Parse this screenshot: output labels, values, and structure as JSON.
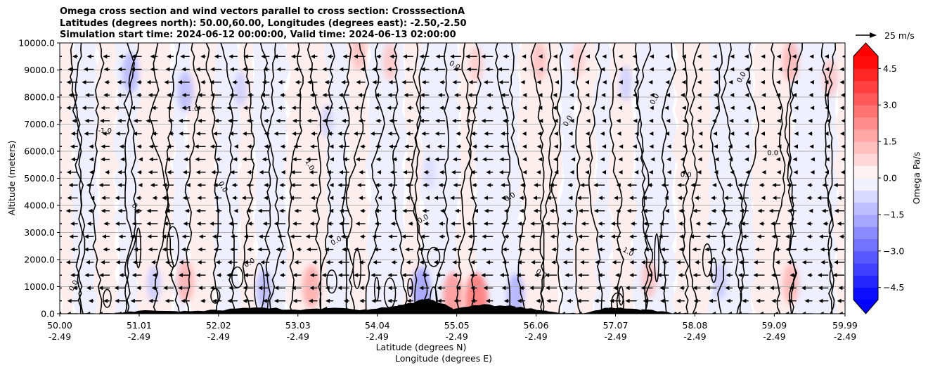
{
  "title": {
    "line1": "Omega cross section and wind vectors parallel to cross section: CrosssectionA",
    "line2": "Latitudes (degrees north): 50.00,60.00, Longitudes (degrees east): -2.50,-2.50",
    "line3": "Simulation start time: 2024-06-12 00:00:00, Valid time: 2024-06-13 02:00:00"
  },
  "chart_data": {
    "type": "heatmap",
    "description_kind": "cross-section contour plot with wind vectors",
    "ylabel": "Altitude (meters)",
    "xlabel_line1": "Latitude (degrees N)",
    "xlabel_line2": "Longitude (degrees E)",
    "ylim": [
      0,
      10000
    ],
    "y_ticks": [
      "0.0",
      "1000.0",
      "2000.0",
      "3000.0",
      "4000.0",
      "5000.0",
      "6000.0",
      "7000.0",
      "8000.0",
      "9000.0",
      "10000.0"
    ],
    "y_tick_values": [
      0,
      1000,
      2000,
      3000,
      4000,
      5000,
      6000,
      7000,
      8000,
      9000,
      10000
    ],
    "xlim": [
      50.0,
      59.99
    ],
    "x_ticks": [
      {
        "lat": "50.00",
        "lon": "-2.49",
        "value": 50.0
      },
      {
        "lat": "51.01",
        "lon": "-2.49",
        "value": 51.01
      },
      {
        "lat": "52.02",
        "lon": "-2.49",
        "value": 52.02
      },
      {
        "lat": "53.03",
        "lon": "-2.49",
        "value": 53.03
      },
      {
        "lat": "54.04",
        "lon": "-2.49",
        "value": 54.04
      },
      {
        "lat": "55.05",
        "lon": "-2.49",
        "value": 55.05
      },
      {
        "lat": "56.06",
        "lon": "-2.49",
        "value": 56.06
      },
      {
        "lat": "57.07",
        "lon": "-2.49",
        "value": 57.07
      },
      {
        "lat": "58.08",
        "lon": "-2.49",
        "value": 58.08
      },
      {
        "lat": "59.09",
        "lon": "-2.49",
        "value": 59.09
      },
      {
        "lat": "59.99",
        "lon": "-2.49",
        "value": 59.99
      }
    ],
    "grid": "horizontal",
    "colorbar": {
      "label": "Omega Pa/s",
      "range": [
        -5,
        5
      ],
      "ticks": [
        "4.5",
        "3.0",
        "1.5",
        "0.0",
        "−1.5",
        "−3.0",
        "−4.5"
      ],
      "tick_values": [
        4.5,
        3.0,
        1.5,
        0.0,
        -1.5,
        -3.0,
        -4.5
      ],
      "levels": 20,
      "colormap": "bwr"
    },
    "quiver_key": {
      "label": "25 m/s",
      "value": 25
    },
    "wind_direction": "westward (towards lower latitude)",
    "contour_labels": [
      "0.0",
      "0.0",
      "-1.0",
      "1.0",
      "1.0",
      "0.0",
      "0.0",
      "-1.0",
      "0.0",
      "0.0",
      "0.0",
      "0.0",
      "0.0",
      "0.0",
      "0.0",
      "0.0",
      "0.0",
      "0.0"
    ],
    "omega_anomalies": [
      {
        "lat": 50.9,
        "alt": 8900,
        "omega": -1.4
      },
      {
        "lat": 51.6,
        "alt": 8200,
        "omega": -1.3
      },
      {
        "lat": 52.3,
        "alt": 8300,
        "omega": -0.9
      },
      {
        "lat": 53.4,
        "alt": 7100,
        "omega": -0.8
      },
      {
        "lat": 53.8,
        "alt": 9700,
        "omega": 1.2
      },
      {
        "lat": 54.2,
        "alt": 9300,
        "omega": 1.1
      },
      {
        "lat": 54.7,
        "alt": 5200,
        "omega": -0.7
      },
      {
        "lat": 55.3,
        "alt": 9200,
        "omega": 1.0
      },
      {
        "lat": 56.1,
        "alt": 9300,
        "omega": 1.2
      },
      {
        "lat": 56.6,
        "alt": 9400,
        "omega": 0.9
      },
      {
        "lat": 57.2,
        "alt": 8500,
        "omega": -0.9
      },
      {
        "lat": 59.3,
        "alt": 9300,
        "omega": 1.4
      },
      {
        "lat": 59.8,
        "alt": 8700,
        "omega": 1.1
      },
      {
        "lat": 51.2,
        "alt": 1100,
        "omega": -1.0
      },
      {
        "lat": 51.6,
        "alt": 1200,
        "omega": 1.5
      },
      {
        "lat": 52.6,
        "alt": 900,
        "omega": -1.3
      },
      {
        "lat": 53.2,
        "alt": 1000,
        "omega": 1.6
      },
      {
        "lat": 54.6,
        "alt": 900,
        "omega": -1.8
      },
      {
        "lat": 55.0,
        "alt": 650,
        "omega": 2.0
      },
      {
        "lat": 55.3,
        "alt": 500,
        "omega": 2.6
      },
      {
        "lat": 55.8,
        "alt": 700,
        "omega": -1.5
      },
      {
        "lat": 57.5,
        "alt": 1300,
        "omega": 1.2
      },
      {
        "lat": 58.4,
        "alt": 1200,
        "omega": -1.0
      },
      {
        "lat": 59.3,
        "alt": 1100,
        "omega": 1.4
      }
    ],
    "terrain": [
      {
        "lat": 50.0,
        "alt": 0
      },
      {
        "lat": 50.7,
        "alt": 20
      },
      {
        "lat": 51.0,
        "alt": 120
      },
      {
        "lat": 51.5,
        "alt": 100
      },
      {
        "lat": 52.0,
        "alt": 110
      },
      {
        "lat": 52.5,
        "alt": 260
      },
      {
        "lat": 53.0,
        "alt": 120
      },
      {
        "lat": 53.4,
        "alt": 230
      },
      {
        "lat": 53.9,
        "alt": 150
      },
      {
        "lat": 54.3,
        "alt": 300
      },
      {
        "lat": 54.7,
        "alt": 560
      },
      {
        "lat": 55.0,
        "alt": 200
      },
      {
        "lat": 55.4,
        "alt": 330
      },
      {
        "lat": 55.8,
        "alt": 260
      },
      {
        "lat": 56.2,
        "alt": 90
      },
      {
        "lat": 56.6,
        "alt": 0
      },
      {
        "lat": 57.0,
        "alt": 250
      },
      {
        "lat": 57.4,
        "alt": 140
      },
      {
        "lat": 57.8,
        "alt": 40
      },
      {
        "lat": 58.0,
        "alt": 0
      },
      {
        "lat": 59.99,
        "alt": 0
      }
    ]
  }
}
